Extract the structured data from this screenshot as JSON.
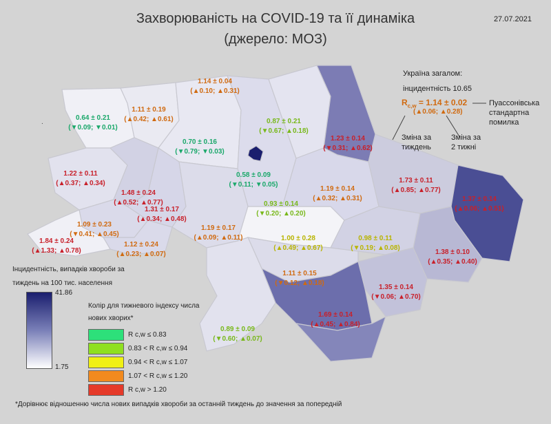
{
  "title_line1": "Захворюваність на COVID-19 та її динаміка",
  "title_line2": "(джерело: МОЗ)",
  "date": "27.07.2021",
  "colors": {
    "red": "#e53a2a",
    "orange": "#f28a1e",
    "yellow": "#f0f014",
    "lgreen": "#8fe020",
    "green": "#2de07a",
    "high": "#1a1e6e",
    "low": "#ffffff"
  },
  "regions": [
    {
      "id": "volyn",
      "r": "0.64 ± 0.21",
      "d": "(▼0.09; ▼0.01)",
      "cls": "c-green"
    },
    {
      "id": "rivne",
      "r": "1.11 ± 0.19",
      "d": "(▲0.42; ▲0.61)",
      "cls": "c-orange"
    },
    {
      "id": "polissia",
      "r": "1.14 ± 0.04",
      "d": "(▲0.10; ▲0.31)",
      "cls": "c-orange"
    },
    {
      "id": "zhytomyr",
      "r": "0.70 ± 0.16",
      "d": "(▼0.79; ▼0.03)",
      "cls": "c-green"
    },
    {
      "id": "chernihiv",
      "r": "0.87 ± 0.21",
      "d": "(▼0.67; ▲0.18)",
      "cls": "c-lgreen"
    },
    {
      "id": "sumy",
      "r": "1.23 ± 0.14",
      "d": "(▼0.31; ▲0.62)",
      "cls": "c-red"
    },
    {
      "id": "lviv",
      "r": "1.22 ± 0.11",
      "d": "(▲0.37; ▲0.34)",
      "cls": "c-red"
    },
    {
      "id": "ternopil",
      "r": "1.48 ± 0.24",
      "d": "(▲0.52; ▲0.77)",
      "cls": "c-red"
    },
    {
      "id": "khmelnytskyi",
      "r": "1.31 ± 0.17",
      "d": "(▲0.34; ▲0.48)",
      "cls": "c-red"
    },
    {
      "id": "kyiv",
      "r": "0.58 ± 0.09",
      "d": "(▼0.11; ▼0.05)",
      "cls": "c-green"
    },
    {
      "id": "kyiv_obl",
      "r": "0.93 ± 0.14",
      "d": "(▼0.20; ▲0.20)",
      "cls": "c-lgreen"
    },
    {
      "id": "poltava",
      "r": "1.19 ± 0.14",
      "d": "(▲0.32; ▲0.31)",
      "cls": "c-orange"
    },
    {
      "id": "kharkiv",
      "r": "1.73 ± 0.11",
      "d": "(▲0.85; ▲0.77)",
      "cls": "c-red"
    },
    {
      "id": "luhansk",
      "r": "1.37 ± 0.14",
      "d": "(▲0.06; ▲0.51)",
      "cls": "c-red"
    },
    {
      "id": "ivano",
      "r": "1.09 ± 0.23",
      "d": "(▼0.41; ▲0.45)",
      "cls": "c-orange"
    },
    {
      "id": "vinnytsia",
      "r": "1.19 ± 0.17",
      "d": "(▲0.09; ▲0.11)",
      "cls": "c-orange"
    },
    {
      "id": "cherkasy",
      "r": "1.00 ± 0.28",
      "d": "(▲0.49; ▲0.67)",
      "cls": "c-yellow"
    },
    {
      "id": "dnipro",
      "r": "0.98 ± 0.11",
      "d": "(▼0.19; ▲0.08)",
      "cls": "c-yellow"
    },
    {
      "id": "zakarpattia",
      "r": "1.84 ± 0.24",
      "d": "(▲1.33; ▲0.78)",
      "cls": "c-red"
    },
    {
      "id": "chernivtsi",
      "r": "1.12 ± 0.24",
      "d": "(▲0.23; ▲0.07)",
      "cls": "c-orange"
    },
    {
      "id": "donetsk",
      "r": "1.38 ± 0.10",
      "d": "(▲0.35; ▲0.40)",
      "cls": "c-red"
    },
    {
      "id": "kirovohrad",
      "r": "1.11 ± 0.15",
      "d": "(▼0.12; ▲0.18)",
      "cls": "c-orange"
    },
    {
      "id": "zaporizhzhia",
      "r": "1.35 ± 0.14",
      "d": "(▼0.06; ▲0.70)",
      "cls": "c-red"
    },
    {
      "id": "mykolaiv",
      "r": "1.69 ± 0.14",
      "d": "(▲0.45; ▲0.84)",
      "cls": "c-red"
    },
    {
      "id": "odesa",
      "r": "0.89 ± 0.09",
      "d": "(▼0.60; ▲0.07)",
      "cls": "c-lgreen"
    }
  ],
  "summary": {
    "line1": "Україна загалом:",
    "line2": "інцидентність 10.65",
    "formula_r": "R",
    "formula_sub": "c,w",
    "formula_val": " = 1.14 ± 0.02",
    "formula_d": "(▲0.06; ▲0.28)",
    "note_poisson": "Пуассонівська стандартна помилка",
    "note_week": "Зміна за тиждень",
    "note_2weeks": "Зміна за 2 тижні"
  },
  "legend": {
    "inc_title": "Інцидентність, випадків хвороби за тиждень на 100 тис. населення",
    "max": "41.86",
    "min": "1.75",
    "color_title": "Колір для тижневого індексу числа нових хворих*",
    "bins": [
      {
        "text": "R c,w ≤ 0.83",
        "color": "#2de07a"
      },
      {
        "text": "0.83 < R c,w ≤ 0.94",
        "color": "#8fe020"
      },
      {
        "text": "0.94 < R c,w ≤ 1.07",
        "color": "#f0f014"
      },
      {
        "text": "1.07 < R c,w ≤ 1.20",
        "color": "#f28a1e"
      },
      {
        "text": "R c,w > 1.20",
        "color": "#e53a2a"
      }
    ]
  },
  "footnote": "*Дорівнює відношенню числа нових випадків хвороби за останній тиждень до значення за попередній"
}
